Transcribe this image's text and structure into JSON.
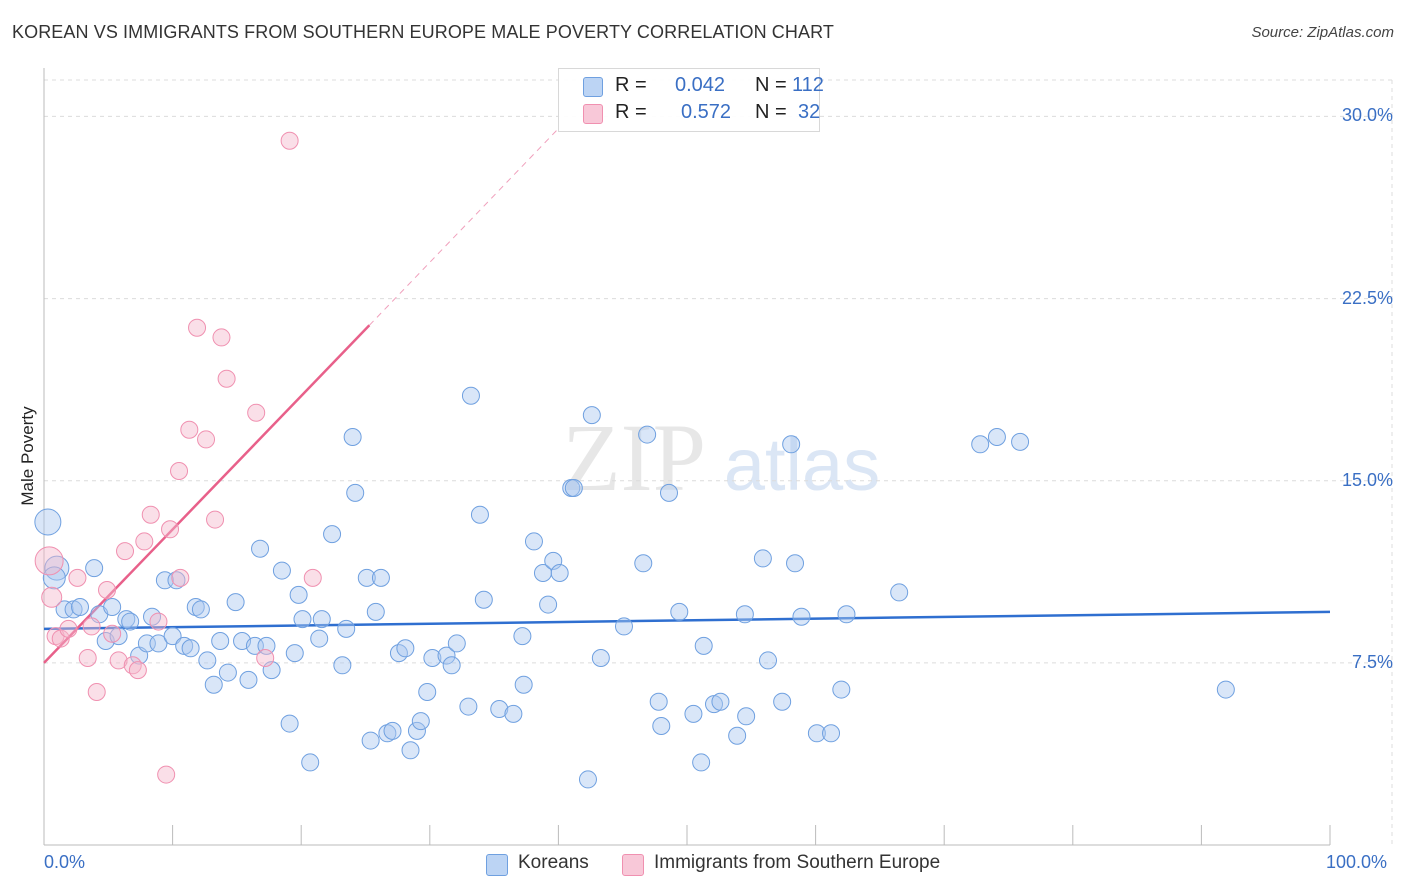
{
  "chart_data": {
    "type": "scatter",
    "title": "KOREAN VS IMMIGRANTS FROM SOUTHERN EUROPE MALE POVERTY CORRELATION CHART",
    "source": "Source: ZipAtlas.com",
    "ylabel": "Male Poverty",
    "xlim": [
      0,
      100
    ],
    "ylim": [
      0,
      31.5
    ],
    "x_tick_labels": [
      "0.0%",
      "100.0%"
    ],
    "y_ticks": [
      {
        "value": 7.5,
        "label": "7.5%"
      },
      {
        "value": 15.0,
        "label": "15.0%"
      },
      {
        "value": 22.5,
        "label": "22.5%"
      },
      {
        "value": 30.0,
        "label": "30.0%"
      }
    ],
    "watermark": {
      "zip": "ZIP",
      "atlas": "atlas"
    },
    "series": [
      {
        "name": "Koreans",
        "color": "#6fa0e0",
        "R": "0.042",
        "N": "112",
        "trend": {
          "x": [
            0,
            100
          ],
          "y": [
            8.9,
            9.6
          ]
        },
        "points": [
          [
            0.3,
            13.3
          ],
          [
            1.0,
            11.4
          ],
          [
            0.8,
            11.0
          ],
          [
            1.6,
            9.7
          ],
          [
            2.3,
            9.7
          ],
          [
            2.8,
            9.8
          ],
          [
            3.9,
            11.4
          ],
          [
            4.3,
            9.5
          ],
          [
            5.3,
            9.8
          ],
          [
            4.8,
            8.4
          ],
          [
            5.8,
            8.6
          ],
          [
            6.4,
            9.3
          ],
          [
            6.7,
            9.2
          ],
          [
            7.4,
            7.8
          ],
          [
            8.0,
            8.3
          ],
          [
            8.4,
            9.4
          ],
          [
            8.9,
            8.3
          ],
          [
            9.4,
            10.9
          ],
          [
            10.0,
            8.6
          ],
          [
            10.3,
            10.9
          ],
          [
            10.9,
            8.2
          ],
          [
            11.4,
            8.1
          ],
          [
            11.8,
            9.8
          ],
          [
            12.2,
            9.7
          ],
          [
            12.7,
            7.6
          ],
          [
            13.2,
            6.6
          ],
          [
            13.7,
            8.4
          ],
          [
            14.3,
            7.1
          ],
          [
            14.9,
            10.0
          ],
          [
            15.4,
            8.4
          ],
          [
            15.9,
            6.8
          ],
          [
            16.4,
            8.2
          ],
          [
            16.8,
            12.2
          ],
          [
            17.3,
            8.2
          ],
          [
            17.7,
            7.2
          ],
          [
            18.5,
            11.3
          ],
          [
            19.1,
            5.0
          ],
          [
            19.5,
            7.9
          ],
          [
            19.8,
            10.3
          ],
          [
            20.1,
            9.3
          ],
          [
            20.7,
            3.4
          ],
          [
            21.4,
            8.5
          ],
          [
            21.6,
            9.3
          ],
          [
            22.4,
            12.8
          ],
          [
            23.2,
            7.4
          ],
          [
            23.5,
            8.9
          ],
          [
            24.0,
            16.8
          ],
          [
            24.2,
            14.5
          ],
          [
            25.1,
            11.0
          ],
          [
            25.4,
            4.3
          ],
          [
            25.8,
            9.6
          ],
          [
            26.2,
            11.0
          ],
          [
            26.7,
            4.6
          ],
          [
            27.1,
            4.7
          ],
          [
            27.6,
            7.9
          ],
          [
            28.1,
            8.1
          ],
          [
            28.5,
            3.9
          ],
          [
            29.0,
            4.7
          ],
          [
            29.3,
            5.1
          ],
          [
            29.8,
            6.3
          ],
          [
            30.2,
            7.7
          ],
          [
            31.3,
            7.8
          ],
          [
            31.7,
            7.4
          ],
          [
            32.1,
            8.3
          ],
          [
            33.0,
            5.7
          ],
          [
            33.2,
            18.5
          ],
          [
            33.9,
            13.6
          ],
          [
            34.2,
            10.1
          ],
          [
            35.4,
            5.6
          ],
          [
            36.5,
            5.4
          ],
          [
            37.2,
            8.6
          ],
          [
            37.3,
            6.6
          ],
          [
            38.1,
            12.5
          ],
          [
            38.8,
            11.2
          ],
          [
            39.2,
            9.9
          ],
          [
            39.6,
            11.7
          ],
          [
            40.1,
            11.2
          ],
          [
            41.0,
            14.7
          ],
          [
            41.2,
            14.7
          ],
          [
            42.3,
            2.7
          ],
          [
            42.6,
            17.7
          ],
          [
            43.3,
            7.7
          ],
          [
            45.1,
            9.0
          ],
          [
            46.6,
            11.6
          ],
          [
            46.9,
            16.9
          ],
          [
            47.8,
            5.9
          ],
          [
            48.0,
            4.9
          ],
          [
            48.6,
            14.5
          ],
          [
            49.4,
            9.6
          ],
          [
            50.5,
            5.4
          ],
          [
            51.1,
            3.4
          ],
          [
            51.3,
            8.2
          ],
          [
            52.1,
            5.8
          ],
          [
            52.6,
            5.9
          ],
          [
            53.9,
            4.5
          ],
          [
            54.5,
            9.5
          ],
          [
            54.6,
            5.3
          ],
          [
            55.9,
            11.8
          ],
          [
            56.3,
            7.6
          ],
          [
            57.4,
            5.9
          ],
          [
            58.1,
            16.5
          ],
          [
            58.4,
            11.6
          ],
          [
            58.9,
            9.4
          ],
          [
            60.1,
            4.6
          ],
          [
            61.2,
            4.6
          ],
          [
            62.0,
            6.4
          ],
          [
            62.4,
            9.5
          ],
          [
            66.5,
            10.4
          ],
          [
            72.8,
            16.5
          ],
          [
            74.1,
            16.8
          ],
          [
            75.9,
            16.6
          ],
          [
            91.9,
            6.4
          ]
        ]
      },
      {
        "name": "Immigrants from Southern Europe",
        "color": "#f090b0",
        "R": "0.572",
        "N": "32",
        "trend": {
          "x": [
            0,
            25.3
          ],
          "y": [
            7.5,
            21.4
          ]
        },
        "trend_ext": {
          "x": [
            25.3,
            40.0
          ],
          "y": [
            21.4,
            29.5
          ]
        },
        "points": [
          [
            0.4,
            11.7
          ],
          [
            0.6,
            10.2
          ],
          [
            0.9,
            8.6
          ],
          [
            1.3,
            8.5
          ],
          [
            1.9,
            8.9
          ],
          [
            2.6,
            11.0
          ],
          [
            3.4,
            7.7
          ],
          [
            3.7,
            9.0
          ],
          [
            4.1,
            6.3
          ],
          [
            4.9,
            10.5
          ],
          [
            5.3,
            8.7
          ],
          [
            5.8,
            7.6
          ],
          [
            6.3,
            12.1
          ],
          [
            6.9,
            7.4
          ],
          [
            7.3,
            7.2
          ],
          [
            7.8,
            12.5
          ],
          [
            8.3,
            13.6
          ],
          [
            8.9,
            9.2
          ],
          [
            9.5,
            2.9
          ],
          [
            9.8,
            13.0
          ],
          [
            10.5,
            15.4
          ],
          [
            10.6,
            11.0
          ],
          [
            11.3,
            17.1
          ],
          [
            11.9,
            21.3
          ],
          [
            12.6,
            16.7
          ],
          [
            13.3,
            13.4
          ],
          [
            13.8,
            20.9
          ],
          [
            14.2,
            19.2
          ],
          [
            16.5,
            17.8
          ],
          [
            17.2,
            7.7
          ],
          [
            19.1,
            29.0
          ],
          [
            20.9,
            11.0
          ]
        ]
      }
    ]
  }
}
